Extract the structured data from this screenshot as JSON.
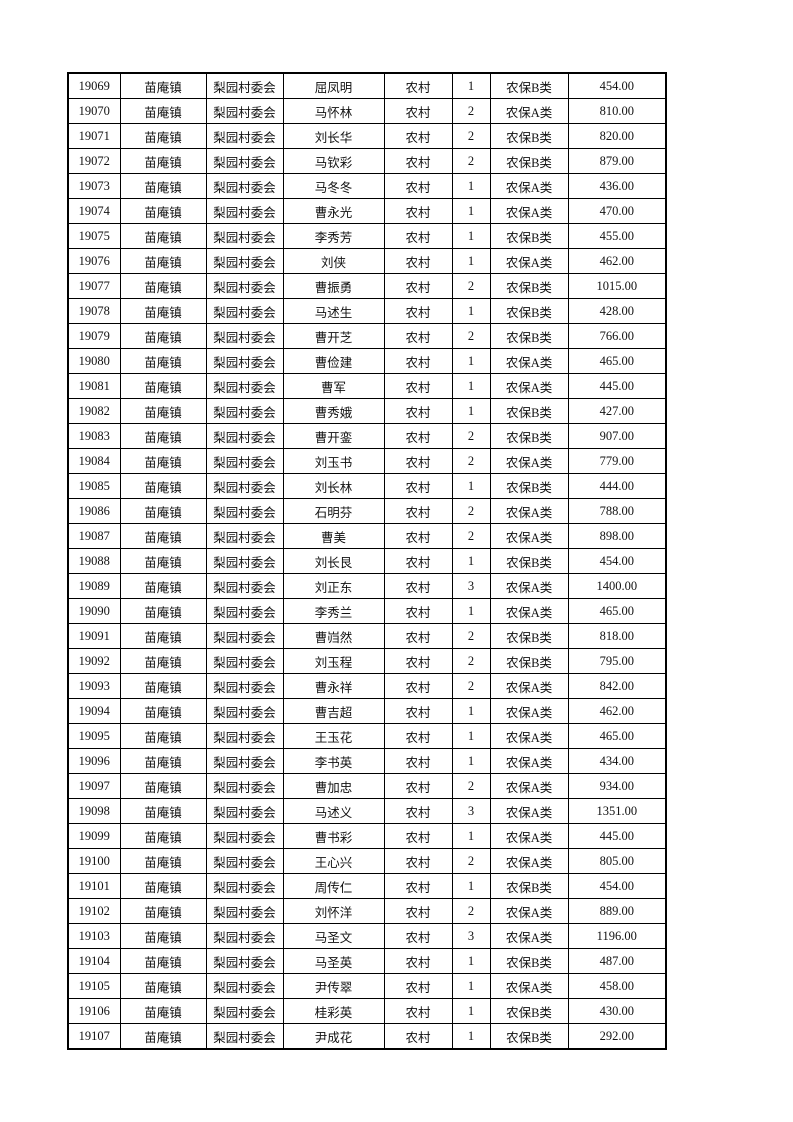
{
  "rows": [
    [
      "19069",
      "苗庵镇",
      "梨园村委会",
      "屈凤明",
      "农村",
      "1",
      "农保B类",
      "454.00"
    ],
    [
      "19070",
      "苗庵镇",
      "梨园村委会",
      "马怀林",
      "农村",
      "2",
      "农保A类",
      "810.00"
    ],
    [
      "19071",
      "苗庵镇",
      "梨园村委会",
      "刘长华",
      "农村",
      "2",
      "农保B类",
      "820.00"
    ],
    [
      "19072",
      "苗庵镇",
      "梨园村委会",
      "马钦彩",
      "农村",
      "2",
      "农保B类",
      "879.00"
    ],
    [
      "19073",
      "苗庵镇",
      "梨园村委会",
      "马冬冬",
      "农村",
      "1",
      "农保A类",
      "436.00"
    ],
    [
      "19074",
      "苗庵镇",
      "梨园村委会",
      "曹永光",
      "农村",
      "1",
      "农保A类",
      "470.00"
    ],
    [
      "19075",
      "苗庵镇",
      "梨园村委会",
      "李秀芳",
      "农村",
      "1",
      "农保B类",
      "455.00"
    ],
    [
      "19076",
      "苗庵镇",
      "梨园村委会",
      "刘侠",
      "农村",
      "1",
      "农保A类",
      "462.00"
    ],
    [
      "19077",
      "苗庵镇",
      "梨园村委会",
      "曹振勇",
      "农村",
      "2",
      "农保B类",
      "1015.00"
    ],
    [
      "19078",
      "苗庵镇",
      "梨园村委会",
      "马述生",
      "农村",
      "1",
      "农保B类",
      "428.00"
    ],
    [
      "19079",
      "苗庵镇",
      "梨园村委会",
      "曹开芝",
      "农村",
      "2",
      "农保B类",
      "766.00"
    ],
    [
      "19080",
      "苗庵镇",
      "梨园村委会",
      "曹俭建",
      "农村",
      "1",
      "农保A类",
      "465.00"
    ],
    [
      "19081",
      "苗庵镇",
      "梨园村委会",
      "曹军",
      "农村",
      "1",
      "农保A类",
      "445.00"
    ],
    [
      "19082",
      "苗庵镇",
      "梨园村委会",
      "曹秀娥",
      "农村",
      "1",
      "农保B类",
      "427.00"
    ],
    [
      "19083",
      "苗庵镇",
      "梨园村委会",
      "曹开銮",
      "农村",
      "2",
      "农保B类",
      "907.00"
    ],
    [
      "19084",
      "苗庵镇",
      "梨园村委会",
      "刘玉书",
      "农村",
      "2",
      "农保A类",
      "779.00"
    ],
    [
      "19085",
      "苗庵镇",
      "梨园村委会",
      "刘长林",
      "农村",
      "1",
      "农保B类",
      "444.00"
    ],
    [
      "19086",
      "苗庵镇",
      "梨园村委会",
      "石明芬",
      "农村",
      "2",
      "农保A类",
      "788.00"
    ],
    [
      "19087",
      "苗庵镇",
      "梨园村委会",
      "曹美",
      "农村",
      "2",
      "农保A类",
      "898.00"
    ],
    [
      "19088",
      "苗庵镇",
      "梨园村委会",
      "刘长艮",
      "农村",
      "1",
      "农保B类",
      "454.00"
    ],
    [
      "19089",
      "苗庵镇",
      "梨园村委会",
      "刘正东",
      "农村",
      "3",
      "农保A类",
      "1400.00"
    ],
    [
      "19090",
      "苗庵镇",
      "梨园村委会",
      "李秀兰",
      "农村",
      "1",
      "农保A类",
      "465.00"
    ],
    [
      "19091",
      "苗庵镇",
      "梨园村委会",
      "曹岿然",
      "农村",
      "2",
      "农保B类",
      "818.00"
    ],
    [
      "19092",
      "苗庵镇",
      "梨园村委会",
      "刘玉程",
      "农村",
      "2",
      "农保B类",
      "795.00"
    ],
    [
      "19093",
      "苗庵镇",
      "梨园村委会",
      "曹永祥",
      "农村",
      "2",
      "农保A类",
      "842.00"
    ],
    [
      "19094",
      "苗庵镇",
      "梨园村委会",
      "曹吉超",
      "农村",
      "1",
      "农保A类",
      "462.00"
    ],
    [
      "19095",
      "苗庵镇",
      "梨园村委会",
      "王玉花",
      "农村",
      "1",
      "农保A类",
      "465.00"
    ],
    [
      "19096",
      "苗庵镇",
      "梨园村委会",
      "李书英",
      "农村",
      "1",
      "农保A类",
      "434.00"
    ],
    [
      "19097",
      "苗庵镇",
      "梨园村委会",
      "曹加忠",
      "农村",
      "2",
      "农保A类",
      "934.00"
    ],
    [
      "19098",
      "苗庵镇",
      "梨园村委会",
      "马述义",
      "农村",
      "3",
      "农保A类",
      "1351.00"
    ],
    [
      "19099",
      "苗庵镇",
      "梨园村委会",
      "曹书彩",
      "农村",
      "1",
      "农保A类",
      "445.00"
    ],
    [
      "19100",
      "苗庵镇",
      "梨园村委会",
      "王心兴",
      "农村",
      "2",
      "农保A类",
      "805.00"
    ],
    [
      "19101",
      "苗庵镇",
      "梨园村委会",
      "周传仁",
      "农村",
      "1",
      "农保B类",
      "454.00"
    ],
    [
      "19102",
      "苗庵镇",
      "梨园村委会",
      "刘怀洋",
      "农村",
      "2",
      "农保A类",
      "889.00"
    ],
    [
      "19103",
      "苗庵镇",
      "梨园村委会",
      "马圣文",
      "农村",
      "3",
      "农保A类",
      "1196.00"
    ],
    [
      "19104",
      "苗庵镇",
      "梨园村委会",
      "马圣英",
      "农村",
      "1",
      "农保B类",
      "487.00"
    ],
    [
      "19105",
      "苗庵镇",
      "梨园村委会",
      "尹传翠",
      "农村",
      "1",
      "农保A类",
      "458.00"
    ],
    [
      "19106",
      "苗庵镇",
      "梨园村委会",
      "桂彩英",
      "农村",
      "1",
      "农保B类",
      "430.00"
    ],
    [
      "19107",
      "苗庵镇",
      "梨园村委会",
      "尹成花",
      "农村",
      "1",
      "农保B类",
      "292.00"
    ]
  ]
}
